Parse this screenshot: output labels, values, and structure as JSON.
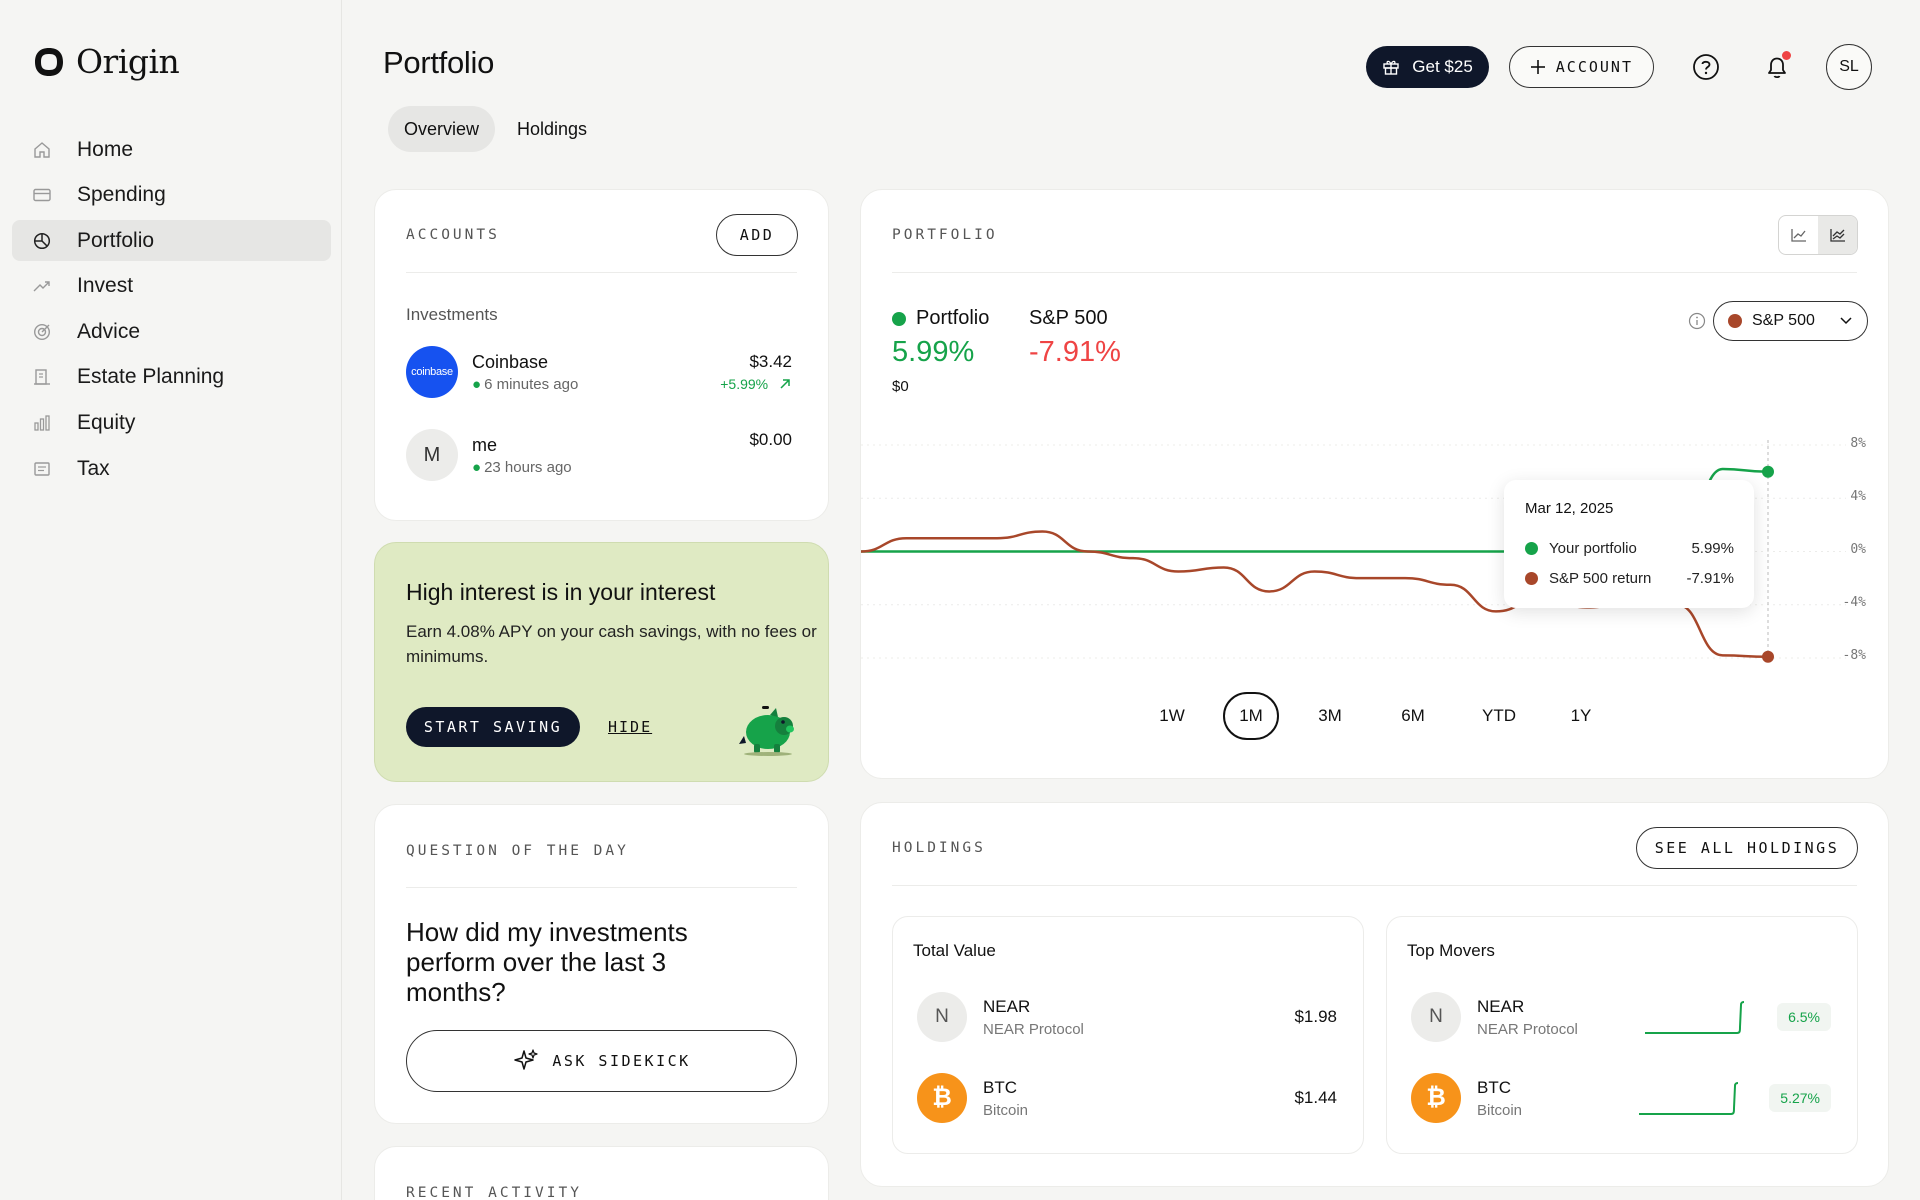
{
  "app": {
    "name": "Origin"
  },
  "nav": {
    "items": [
      {
        "label": "Home",
        "icon": "home-icon"
      },
      {
        "label": "Spending",
        "icon": "card-icon"
      },
      {
        "label": "Portfolio",
        "icon": "pie-icon",
        "active": true
      },
      {
        "label": "Invest",
        "icon": "trend-icon"
      },
      {
        "label": "Advice",
        "icon": "target-icon"
      },
      {
        "label": "Estate Planning",
        "icon": "building-icon"
      },
      {
        "label": "Equity",
        "icon": "bar-icon"
      },
      {
        "label": "Tax",
        "icon": "receipt-icon"
      }
    ]
  },
  "header": {
    "title": "Portfolio",
    "tabs": [
      "Overview",
      "Holdings"
    ],
    "gift_label": "Get $25",
    "account_label": "ACCOUNT",
    "avatar_initials": "SL"
  },
  "accounts": {
    "label": "ACCOUNTS",
    "add_label": "ADD",
    "section": "Investments",
    "items": [
      {
        "logo_text": "coinbase",
        "name": "Coinbase",
        "time": "6 minutes ago",
        "value": "$3.42",
        "change": "+5.99%"
      },
      {
        "logo_text": "M",
        "name": "me",
        "time": "23 hours ago",
        "value": "$0.00"
      }
    ]
  },
  "promo": {
    "title": "High interest is in your interest",
    "text": "Earn 4.08% APY on your cash savings, with no fees or minimums.",
    "cta": "START SAVING",
    "hide": "HIDE"
  },
  "question": {
    "label": "QUESTION OF THE DAY",
    "text": "How did my investments perform over the last 3 months?",
    "cta": "ASK SIDEKICK"
  },
  "recent": {
    "label": "RECENT ACTIVITY"
  },
  "portfolio": {
    "label": "PORTFOLIO",
    "legend_portfolio": "Portfolio",
    "legend_sp": "S&P 500",
    "portfolio_pct": "5.99%",
    "sp_pct": "-7.91%",
    "value": "$0",
    "compare_select": "S&P 500",
    "ranges": [
      "1W",
      "1M",
      "3M",
      "6M",
      "YTD",
      "1Y"
    ],
    "active_range": "1M",
    "tooltip": {
      "date": "Mar 12, 2025",
      "row1_label": "Your portfolio",
      "row1_value": "5.99%",
      "row2_label": "S&P 500 return",
      "row2_value": "-7.91%"
    },
    "colors": {
      "portfolio": "#16a34a",
      "sp": "#a8472a",
      "negative": "#ef4444"
    }
  },
  "chart_data": {
    "type": "line",
    "yticks": [
      "8%",
      "4%",
      "0%",
      "-4%",
      "-8%"
    ],
    "ylim": [
      -8,
      8
    ],
    "x": [
      0,
      1,
      2,
      3,
      4,
      5,
      6,
      7,
      8,
      9,
      10,
      11,
      12,
      13,
      14,
      15,
      16,
      17,
      18,
      19,
      20
    ],
    "series": [
      {
        "name": "Portfolio",
        "values": [
          0,
          0,
          0,
          0,
          0,
          0,
          0,
          0,
          0,
          0,
          0,
          0,
          0,
          0,
          0,
          0,
          0,
          0,
          0,
          6.2,
          5.99
        ]
      },
      {
        "name": "S&P 500",
        "values": [
          0,
          1,
          1,
          1,
          1.5,
          0,
          -0.5,
          -1.5,
          -1.2,
          -3,
          -1.5,
          -2,
          -2,
          -2.5,
          -4.5,
          -3.5,
          -4.2,
          -3.8,
          -4,
          -7.8,
          -7.91
        ]
      }
    ]
  },
  "holdings": {
    "label": "HOLDINGS",
    "see_all": "SEE ALL HOLDINGS",
    "total_title": "Total Value",
    "movers_title": "Top Movers",
    "items": [
      {
        "symbol": "NEAR",
        "name": "NEAR Protocol",
        "logo": "N",
        "value": "$1.98",
        "change": "6.5%"
      },
      {
        "symbol": "BTC",
        "name": "Bitcoin",
        "logo": "₿",
        "value": "$1.44",
        "change": "5.27%"
      }
    ]
  }
}
